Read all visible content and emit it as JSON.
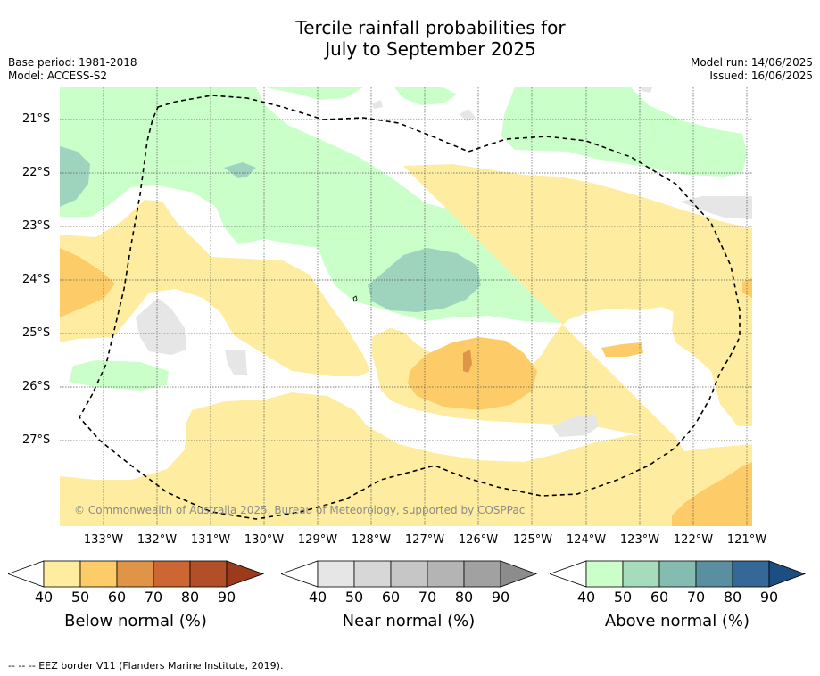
{
  "header": {
    "title_line1": "Tercile rainfall probabilities for",
    "title_line2": "July to September 2025",
    "base_period": "Base period: 1981-2018",
    "model": "Model: ACCESS-S2",
    "model_run": "Model run: 14/06/2025",
    "issued": "Issued: 16/06/2025"
  },
  "map": {
    "lat_labels": [
      "21°S",
      "22°S",
      "23°S",
      "24°S",
      "25°S",
      "26°S",
      "27°S"
    ],
    "lon_labels": [
      "133°W",
      "132°W",
      "131°W",
      "130°W",
      "129°W",
      "128°W",
      "127°W",
      "126°W",
      "125°W",
      "124°W",
      "123°W",
      "122°W",
      "121°W"
    ],
    "copyright": "© Commonwealth of Australia 2025, Bureau of Meteorology, supported by COSPPac",
    "colors": {
      "below_50": "#feeda0",
      "below_60": "#fdcc68",
      "below_70": "#e09448",
      "near_50": "#e6e6e6",
      "above_50": "#caffca",
      "above_60": "#9ed4bd",
      "eez_border": "#000000"
    }
  },
  "colorbars": [
    {
      "title": "Below normal (%)",
      "ticks": [
        "40",
        "50",
        "60",
        "70",
        "80",
        "90"
      ],
      "colors": [
        "#ffffff",
        "#feeda0",
        "#fdcc68",
        "#e09448",
        "#cc6633",
        "#b34f28",
        "#9c3a1c"
      ]
    },
    {
      "title": "Near normal (%)",
      "ticks": [
        "40",
        "50",
        "60",
        "70",
        "80",
        "90"
      ],
      "colors": [
        "#ffffff",
        "#e6e6e6",
        "#d7d7d7",
        "#c6c6c6",
        "#b4b4b4",
        "#a1a1a1",
        "#8c8c8c"
      ]
    },
    {
      "title": "Above normal (%)",
      "ticks": [
        "40",
        "50",
        "60",
        "70",
        "80",
        "90"
      ],
      "colors": [
        "#ffffff",
        "#caffca",
        "#a6dbbb",
        "#85bcb1",
        "#5a8f9f",
        "#346897",
        "#1c4e82"
      ]
    }
  ],
  "footer": {
    "legend_text": "--  --  -- EEZ border V11 (Flanders Marine Institute, 2019)."
  }
}
